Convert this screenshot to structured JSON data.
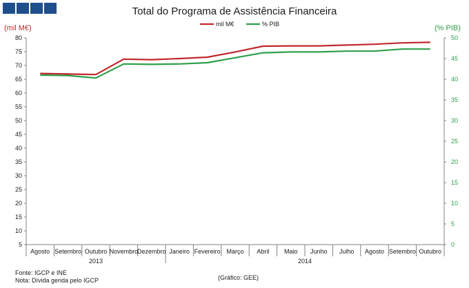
{
  "header": {
    "logo_colors": [
      "#1f4e8c",
      "#1f4e8c",
      "#1f4e8c",
      "#1f4e8c"
    ]
  },
  "chart_data": {
    "type": "line",
    "title": "Total do Programa de Assistência Financeira",
    "ylabel_left": "(mil M€)",
    "ylabel_right": "(% PIB)",
    "categories": [
      "Agosto",
      "Setembro",
      "Outubro",
      "Novembro",
      "Dezembro",
      "Janeiro",
      "Fevereiro",
      "Março",
      "Abril",
      "Maio",
      "Junho",
      "Julho",
      "Agosto",
      "Setembro",
      "Outubro"
    ],
    "year_groups": [
      {
        "label": "2013",
        "start": 0,
        "end": 4
      },
      {
        "label": "2014",
        "start": 5,
        "end": 14
      }
    ],
    "series": [
      {
        "name": "mil M€",
        "axis": "left",
        "color": "#c0282d",
        "values": [
          67.1,
          66.9,
          66.7,
          72.3,
          72.1,
          72.5,
          73.0,
          74.9,
          77.0,
          77.1,
          77.1,
          77.4,
          77.7,
          78.2,
          78.4
        ]
      },
      {
        "name": "% PIB",
        "axis": "right",
        "color": "#2e9e4a",
        "values": [
          41.0,
          40.9,
          40.3,
          43.7,
          43.6,
          43.7,
          44.0,
          45.2,
          46.4,
          46.6,
          46.6,
          46.8,
          46.8,
          47.3,
          47.3
        ]
      }
    ],
    "ylim_left": [
      5,
      80
    ],
    "yticks_left": [
      5,
      10,
      15,
      20,
      25,
      30,
      35,
      40,
      45,
      50,
      55,
      60,
      65,
      70,
      75,
      80
    ],
    "ylim_right": [
      0,
      50
    ],
    "yticks_right": [
      0,
      5,
      10,
      15,
      20,
      25,
      30,
      35,
      40,
      45,
      50
    ],
    "grid": false,
    "legend_position": "top-center"
  },
  "footer": {
    "source": "Fonte: IGCP e INE",
    "note": "Nota: Dívida gerida pelo IGCP",
    "credit": "(Gráfico: GEE)"
  }
}
